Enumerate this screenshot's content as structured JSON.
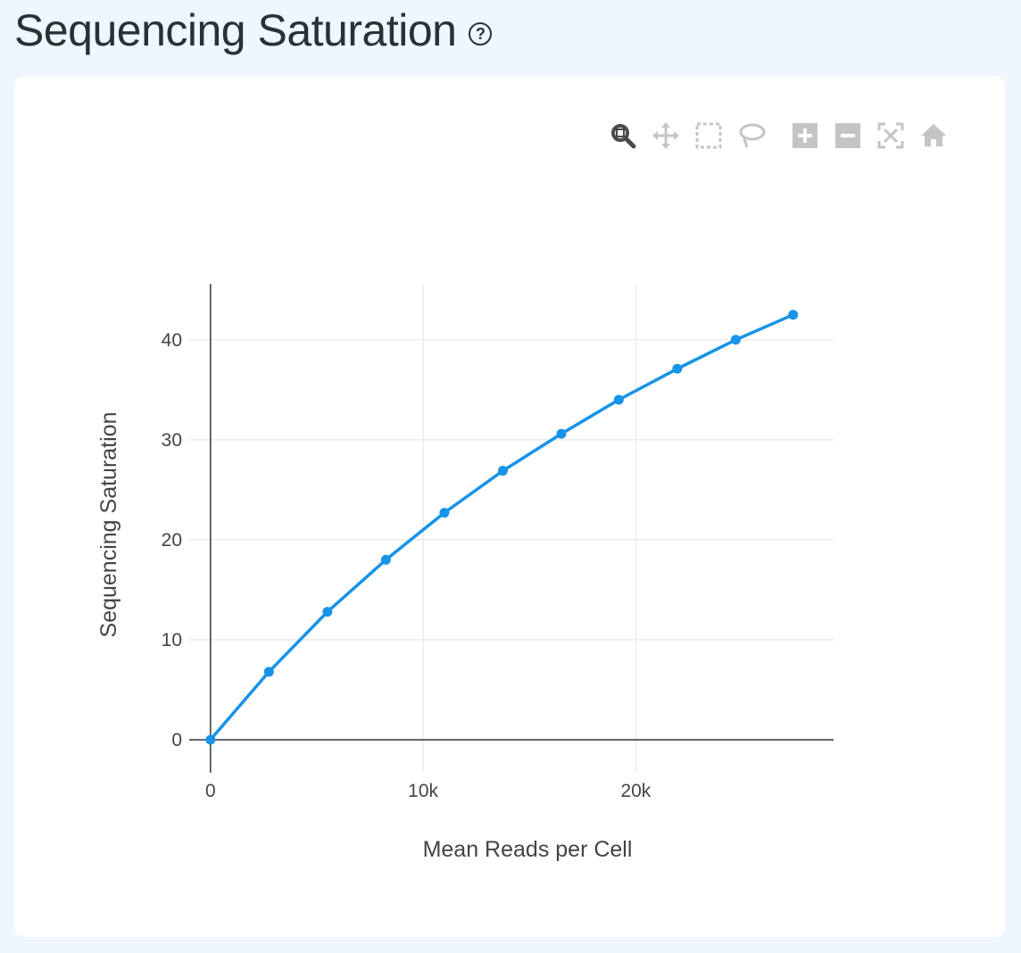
{
  "page": {
    "title": "Sequencing Saturation",
    "help_icon": "question-circle-icon"
  },
  "modebar": {
    "buttons": [
      {
        "name": "zoom",
        "icon": "magnifier-icon"
      },
      {
        "name": "pan",
        "icon": "pan-arrows-icon"
      },
      {
        "name": "box-select",
        "icon": "dashed-box-icon"
      },
      {
        "name": "lasso-select",
        "icon": "lasso-icon"
      },
      {
        "name": "zoom-in",
        "icon": "plus-square-icon"
      },
      {
        "name": "zoom-out",
        "icon": "minus-square-icon"
      },
      {
        "name": "autoscale",
        "icon": "autoscale-icon"
      },
      {
        "name": "reset-axes",
        "icon": "home-icon"
      }
    ]
  },
  "chart_data": {
    "type": "line",
    "title": "",
    "xlabel": "Mean Reads per Cell",
    "ylabel": "Sequencing Saturation",
    "xlim": [
      -1000,
      29300
    ],
    "ylim": [
      -3.3,
      45.6
    ],
    "xticks": [
      0,
      10000,
      20000
    ],
    "xtick_labels": [
      "0",
      "10k",
      "20k"
    ],
    "yticks": [
      0,
      10,
      20,
      30,
      40
    ],
    "ytick_labels": [
      "0",
      "10",
      "20",
      "30",
      "40"
    ],
    "grid": true,
    "line_color": "#1793e8",
    "series": [
      {
        "name": "Sequencing Saturation",
        "x": [
          0,
          2750,
          5500,
          8250,
          11000,
          13750,
          16500,
          19200,
          21950,
          24700,
          27400
        ],
        "y": [
          0,
          6.8,
          12.8,
          18.0,
          22.7,
          26.9,
          30.6,
          34.0,
          37.1,
          40.0,
          42.5
        ]
      }
    ]
  }
}
